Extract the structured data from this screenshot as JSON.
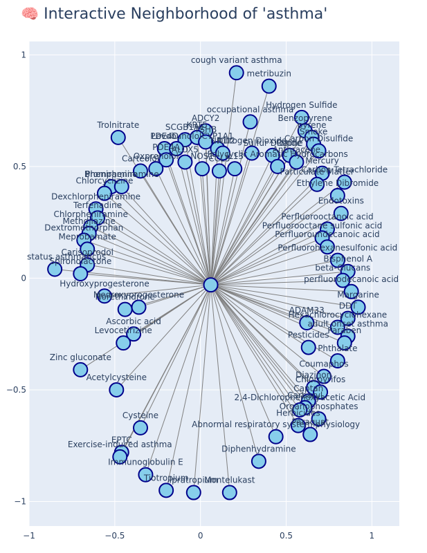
{
  "title": "Interactive Neighborhood of 'asthma'",
  "title_icon": "brain-icon",
  "colors": {
    "plot_bg": "#e5ecf6",
    "node_fill": "#87ceeb",
    "node_stroke": "#00008b",
    "edge": "#808080",
    "text": "#2a3f5f"
  },
  "chart_data": {
    "type": "scatter",
    "title": "Interactive Neighborhood of 'asthma'",
    "xlabel": "",
    "ylabel": "",
    "xlim": [
      -1.0,
      1.16
    ],
    "ylim": [
      -1.11,
      1.06
    ],
    "x_ticks": [
      -1,
      -0.5,
      0,
      0.5,
      1
    ],
    "y_ticks": [
      -1,
      -0.5,
      0,
      0.5,
      1
    ],
    "x_tick_labels": [
      "−1",
      "−0.5",
      "0",
      "0.5",
      "1"
    ],
    "y_tick_labels": [
      "−1",
      "−0.5",
      "0",
      "0.5",
      "1"
    ],
    "grid": true,
    "legend": "none",
    "center_node": {
      "x": 0.06,
      "y": -0.03
    },
    "nodes": [
      {
        "label": "cough variant asthma",
        "x": 0.21,
        "y": 0.92
      },
      {
        "label": "metribuzin",
        "x": 0.4,
        "y": 0.86
      },
      {
        "label": "Hydrogen Sulfide",
        "x": 0.59,
        "y": 0.72
      },
      {
        "label": "occupational asthma",
        "x": 0.29,
        "y": 0.7
      },
      {
        "label": "Benzopyrene",
        "x": 0.61,
        "y": 0.66
      },
      {
        "label": "Trolnitrate",
        "x": -0.48,
        "y": 0.63
      },
      {
        "label": "ADCY2",
        "x": 0.03,
        "y": 0.66
      },
      {
        "label": "pyrene",
        "x": 0.65,
        "y": 0.63
      },
      {
        "label": "SCGB1A1",
        "x": -0.09,
        "y": 0.62
      },
      {
        "label": "KRT5",
        "x": -0.02,
        "y": 0.63
      },
      {
        "label": "TSHB",
        "x": 0.03,
        "y": 0.61
      },
      {
        "label": "Smoke",
        "x": 0.66,
        "y": 0.6
      },
      {
        "label": "Carbon Disulfide",
        "x": 0.69,
        "y": 0.57
      },
      {
        "label": "PDE4D",
        "x": -0.21,
        "y": 0.58
      },
      {
        "label": "Levobunolol",
        "x": -0.14,
        "y": 0.58
      },
      {
        "label": "CYP1A1",
        "x": 0.1,
        "y": 0.58
      },
      {
        "label": "NR1I2",
        "x": 0.13,
        "y": 0.56
      },
      {
        "label": "Nitrogen Dioxide",
        "x": 0.3,
        "y": 0.56
      },
      {
        "label": "Sulfur Dioxide",
        "x": 0.42,
        "y": 0.55
      },
      {
        "label": "Ozone",
        "x": 0.52,
        "y": 0.55
      },
      {
        "label": "Anthracene",
        "x": 0.56,
        "y": 0.52
      },
      {
        "label": "PDE4A",
        "x": -0.2,
        "y": 0.53
      },
      {
        "label": "ALOX5",
        "x": -0.09,
        "y": 0.52
      },
      {
        "label": "Polycyclic Aromatic Hydrocarbons",
        "x": 0.45,
        "y": 0.5
      },
      {
        "label": "Oxprenolol",
        "x": -0.26,
        "y": 0.49
      },
      {
        "label": "Carteolol",
        "x": -0.35,
        "y": 0.48
      },
      {
        "label": "NOS1",
        "x": 0.01,
        "y": 0.49
      },
      {
        "label": "CCL5",
        "x": 0.11,
        "y": 0.48
      },
      {
        "label": "IL13",
        "x": 0.2,
        "y": 0.49
      },
      {
        "label": "Mercury",
        "x": 0.71,
        "y": 0.47
      },
      {
        "label": "Particulate Matter",
        "x": 0.68,
        "y": 0.42
      },
      {
        "label": "Carbon Tetrachloride",
        "x": 0.84,
        "y": 0.43
      },
      {
        "label": "Pheniramine",
        "x": -0.52,
        "y": 0.41
      },
      {
        "label": "Brompheniramine",
        "x": -0.46,
        "y": 0.41
      },
      {
        "label": "Chlorcyclizine",
        "x": -0.56,
        "y": 0.38
      },
      {
        "label": "Dexchlorpheniramine",
        "x": -0.61,
        "y": 0.31
      },
      {
        "label": "Ethylene Dibromide",
        "x": 0.8,
        "y": 0.37
      },
      {
        "label": "Endotoxins",
        "x": 0.82,
        "y": 0.29
      },
      {
        "label": "Terfenadine",
        "x": -0.6,
        "y": 0.27
      },
      {
        "label": "Chlorpheniramine",
        "x": -0.64,
        "y": 0.23
      },
      {
        "label": "Methdilazine",
        "x": -0.65,
        "y": 0.2
      },
      {
        "label": "Dextromethorphan",
        "x": -0.68,
        "y": 0.17
      },
      {
        "label": "Meprobamate",
        "x": -0.66,
        "y": 0.13
      },
      {
        "label": "Perfluorooctanoic acid",
        "x": 0.74,
        "y": 0.22
      },
      {
        "label": "Perfluorooctane sulfonic acid",
        "x": 0.71,
        "y": 0.18
      },
      {
        "label": "Perfluoroundecanoic acid",
        "x": 0.74,
        "y": 0.14
      },
      {
        "label": "Perfluorohexanesulfonic acid",
        "x": 0.8,
        "y": 0.08
      },
      {
        "label": "Bisphenol A",
        "x": 0.86,
        "y": 0.03
      },
      {
        "label": "status asthmaticus",
        "x": -0.85,
        "y": 0.04
      },
      {
        "label": "Carisoprodol",
        "x": -0.66,
        "y": 0.06
      },
      {
        "label": "Spironolactone",
        "x": -0.7,
        "y": 0.02
      },
      {
        "label": "beta-Glucans",
        "x": 0.83,
        "y": -0.01
      },
      {
        "label": "Hydroxyprogesterone",
        "x": -0.56,
        "y": -0.08
      },
      {
        "label": "perfluorodecanoic acid",
        "x": 0.88,
        "y": -0.06
      },
      {
        "label": "Norethindrone",
        "x": -0.44,
        "y": -0.14
      },
      {
        "label": "Medroxyprogesterone",
        "x": -0.36,
        "y": -0.13
      },
      {
        "label": "Margarine",
        "x": 0.92,
        "y": -0.13
      },
      {
        "label": "DDT",
        "x": 0.86,
        "y": -0.18
      },
      {
        "label": "Hexachlorocyclohexane",
        "x": 0.8,
        "y": -0.22
      },
      {
        "label": "Ascorbic acid",
        "x": -0.39,
        "y": -0.25
      },
      {
        "label": "ADAM33",
        "x": 0.62,
        "y": -0.2
      },
      {
        "label": "adult onset asthma",
        "x": 0.86,
        "y": -0.26
      },
      {
        "label": "Pesticides",
        "x": 0.63,
        "y": -0.31
      },
      {
        "label": "Levocetirizine",
        "x": -0.45,
        "y": -0.29
      },
      {
        "label": "Paraben",
        "x": 0.84,
        "y": -0.29
      },
      {
        "label": "Zinc gluconate",
        "x": -0.7,
        "y": -0.41
      },
      {
        "label": "Phthalate",
        "x": 0.8,
        "y": -0.37
      },
      {
        "label": "Acetylcysteine",
        "x": -0.49,
        "y": -0.5
      },
      {
        "label": "Coumaphos",
        "x": 0.72,
        "y": -0.44
      },
      {
        "label": "Diazinon",
        "x": 0.66,
        "y": -0.49
      },
      {
        "label": "Chlorpyrifos",
        "x": 0.7,
        "y": -0.51
      },
      {
        "label": "Captan",
        "x": 0.63,
        "y": -0.55
      },
      {
        "label": "Carbaryl",
        "x": 0.61,
        "y": -0.58
      },
      {
        "label": "2,4-Dichlorophenoxyacetic Acid",
        "x": 0.58,
        "y": -0.59
      },
      {
        "label": "Organophosphates",
        "x": 0.69,
        "y": -0.63
      },
      {
        "label": "Herbicides",
        "x": 0.57,
        "y": -0.66
      },
      {
        "label": "Paraquat",
        "x": 0.64,
        "y": -0.7
      },
      {
        "label": "Cysteine",
        "x": -0.35,
        "y": -0.67
      },
      {
        "label": "Abnormal respiratory system physiology",
        "x": 0.44,
        "y": -0.71
      },
      {
        "label": "EPTC",
        "x": -0.46,
        "y": -0.78
      },
      {
        "label": "Exercise-induced asthma",
        "x": -0.47,
        "y": -0.8
      },
      {
        "label": "Diphenhydramine",
        "x": 0.34,
        "y": -0.82
      },
      {
        "label": "Immunoglobulin E",
        "x": -0.32,
        "y": -0.88
      },
      {
        "label": "Tiotropium",
        "x": -0.2,
        "y": -0.95
      },
      {
        "label": "Ipratropium",
        "x": -0.04,
        "y": -0.96
      },
      {
        "label": "Montelukast",
        "x": 0.17,
        "y": -0.96
      }
    ]
  }
}
